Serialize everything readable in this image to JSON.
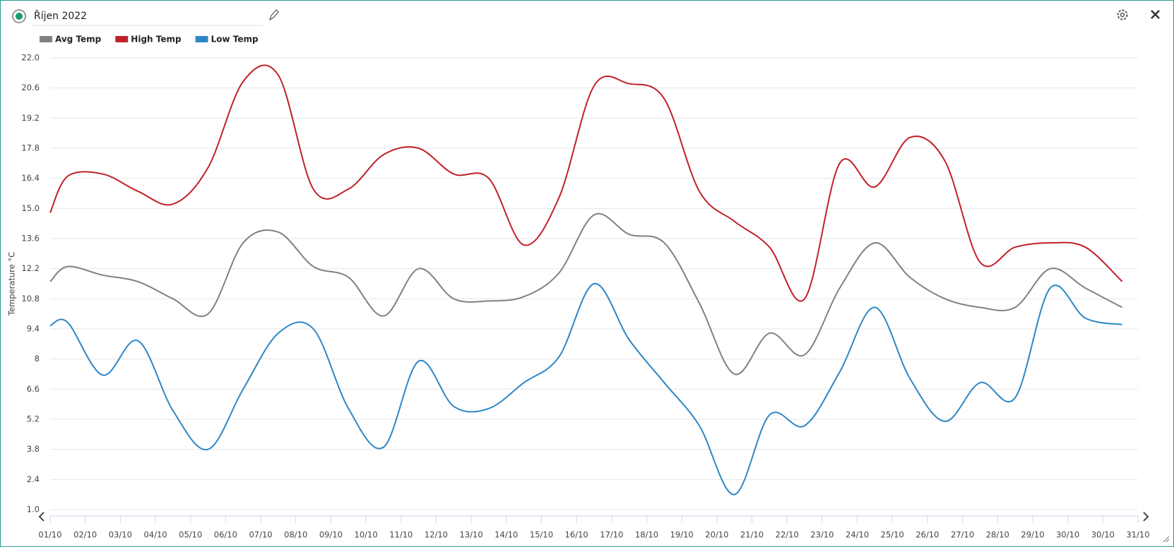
{
  "header": {
    "title": "Říjen 2022"
  },
  "chart_data": {
    "type": "line",
    "y_label": "Temperature °C",
    "x": [
      0,
      0.5,
      1.5,
      2.5,
      3.5,
      4.5,
      5.5,
      6.5,
      7.5,
      8.5,
      9.5,
      10.5,
      11.5,
      12.5,
      13.5,
      14.5,
      15.5,
      16.5,
      17.5,
      18.5,
      19.5,
      20.5,
      21.5,
      22.5,
      23.5,
      24.5,
      25.5,
      26.5,
      27.5,
      28.5,
      29.5,
      30.55
    ],
    "series": [
      {
        "name": "Avg Temp",
        "color": "#808080",
        "values": [
          11.6,
          12.3,
          11.9,
          11.6,
          10.8,
          10.1,
          13.4,
          13.9,
          12.3,
          11.8,
          10.0,
          12.2,
          10.8,
          10.7,
          10.9,
          12.0,
          14.7,
          13.8,
          13.4,
          10.6,
          7.3,
          9.2,
          8.2,
          11.3,
          13.4,
          11.8,
          10.8,
          10.4,
          10.4,
          12.2,
          11.3,
          10.4
        ]
      },
      {
        "name": "High Temp",
        "color": "#c0202a",
        "values": [
          14.8,
          16.5,
          16.6,
          15.8,
          15.2,
          16.9,
          20.9,
          21.2,
          15.9,
          15.9,
          17.5,
          17.8,
          16.6,
          16.4,
          13.3,
          15.5,
          20.7,
          20.8,
          20.1,
          15.8,
          14.4,
          13.2,
          10.8,
          17.1,
          16.0,
          18.3,
          17.2,
          12.5,
          13.2,
          13.4,
          13.2,
          11.6
        ]
      },
      {
        "name": "Low Temp",
        "color": "#2c86c6",
        "values": [
          9.55,
          9.7,
          7.25,
          8.85,
          5.6,
          3.8,
          6.6,
          9.2,
          9.4,
          5.7,
          3.9,
          7.9,
          5.8,
          5.7,
          6.9,
          8.1,
          11.5,
          8.9,
          6.9,
          4.9,
          1.7,
          5.4,
          4.9,
          7.4,
          10.4,
          7.1,
          5.1,
          6.9,
          6.2,
          11.3,
          9.9,
          9.6
        ]
      }
    ],
    "xlim": [
      0,
      31
    ],
    "xticks": [
      {
        "value": 0,
        "label": "01/10"
      },
      {
        "value": 1,
        "label": "02/10"
      },
      {
        "value": 2,
        "label": "03/10"
      },
      {
        "value": 3,
        "label": "04/10"
      },
      {
        "value": 4,
        "label": "05/10"
      },
      {
        "value": 5,
        "label": "06/10"
      },
      {
        "value": 6,
        "label": "07/10"
      },
      {
        "value": 7,
        "label": "08/10"
      },
      {
        "value": 8,
        "label": "09/10"
      },
      {
        "value": 9,
        "label": "10/10"
      },
      {
        "value": 10,
        "label": "11/10"
      },
      {
        "value": 11,
        "label": "12/10"
      },
      {
        "value": 12,
        "label": "13/10"
      },
      {
        "value": 13,
        "label": "14/10"
      },
      {
        "value": 14,
        "label": "15/10"
      },
      {
        "value": 15,
        "label": "16/10"
      },
      {
        "value": 16,
        "label": "17/10"
      },
      {
        "value": 17,
        "label": "18/10"
      },
      {
        "value": 18,
        "label": "19/10"
      },
      {
        "value": 19,
        "label": "20/10"
      },
      {
        "value": 20,
        "label": "21/10"
      },
      {
        "value": 21,
        "label": "22/10"
      },
      {
        "value": 22,
        "label": "23/10"
      },
      {
        "value": 23,
        "label": "24/10"
      },
      {
        "value": 24,
        "label": "25/10"
      },
      {
        "value": 25,
        "label": "26/10"
      },
      {
        "value": 26,
        "label": "27/10"
      },
      {
        "value": 27,
        "label": "28/10"
      },
      {
        "value": 28,
        "label": "29/10"
      },
      {
        "value": 29,
        "label": "30/10"
      },
      {
        "value": 30,
        "label": "30/10"
      },
      {
        "value": 31,
        "label": "31/10"
      }
    ],
    "ylim": [
      1,
      22
    ],
    "yticks": [
      {
        "value": 1,
        "label": "1.0"
      },
      2.4,
      3.8,
      5.2,
      6.6,
      8,
      9.4,
      10.8,
      12.2,
      13.6,
      {
        "value": 15,
        "label": "15.0"
      },
      16.4,
      17.8,
      19.2,
      20.6,
      {
        "value": 22,
        "label": "22.0"
      }
    ],
    "grid": true
  }
}
